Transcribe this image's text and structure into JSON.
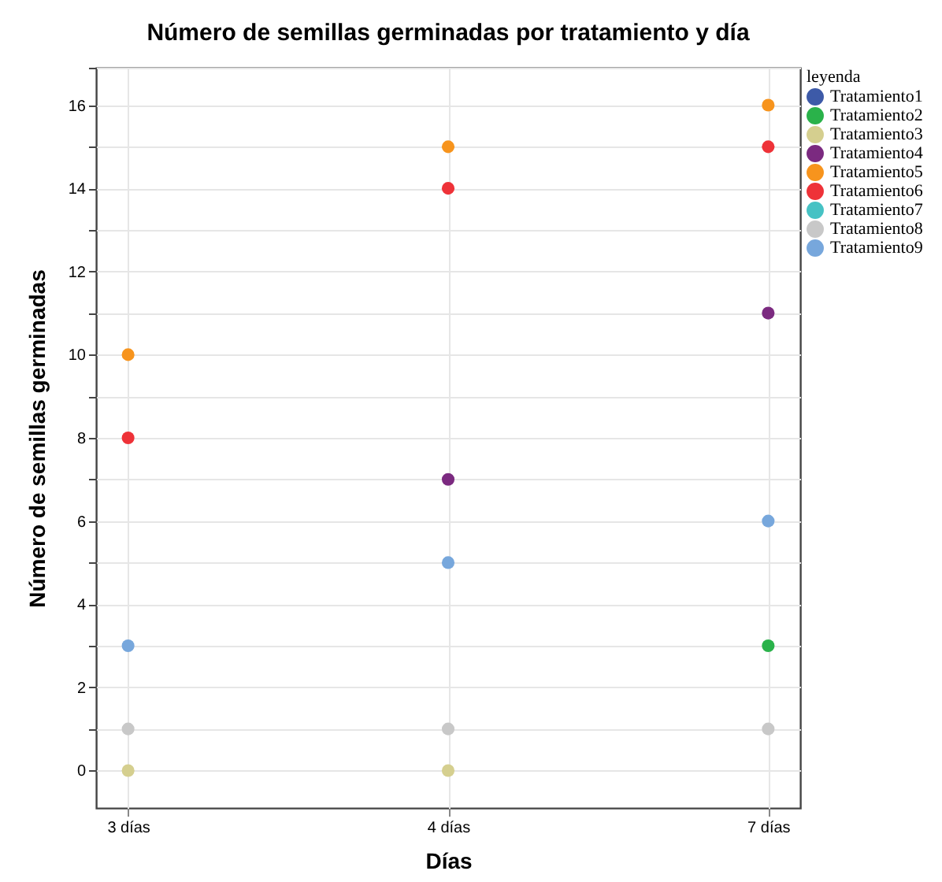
{
  "chart_data": {
    "type": "scatter",
    "title": "Número de semillas germinadas por tratamiento y día",
    "xlabel": "Días",
    "ylabel": "Número de semillas germinadas",
    "legend_title": "leyenda",
    "categories": [
      "3 días",
      "4 días",
      "7 días"
    ],
    "series": [
      {
        "name": "Tratamiento1",
        "color": "#3d5aa8",
        "values": [
          null,
          null,
          null
        ]
      },
      {
        "name": "Tratamiento2",
        "color": "#2ab24a",
        "values": [
          null,
          null,
          3
        ]
      },
      {
        "name": "Tratamiento3",
        "color": "#d5cf8f",
        "values": [
          0,
          0,
          null
        ]
      },
      {
        "name": "Tratamiento4",
        "color": "#7b2a80",
        "values": [
          null,
          7,
          11
        ]
      },
      {
        "name": "Tratamiento5",
        "color": "#f7941d",
        "values": [
          10,
          15,
          16
        ]
      },
      {
        "name": "Tratamiento6",
        "color": "#ee3238",
        "values": [
          8,
          14,
          15
        ]
      },
      {
        "name": "Tratamiento7",
        "color": "#46c2c4",
        "values": [
          null,
          null,
          null
        ]
      },
      {
        "name": "Tratamiento8",
        "color": "#c8c8c8",
        "values": [
          1,
          1,
          1
        ]
      },
      {
        "name": "Tratamiento9",
        "color": "#77a7dc",
        "values": [
          3,
          5,
          6
        ]
      }
    ],
    "ylim": [
      -0.9,
      16.9
    ],
    "yticks": [
      0,
      {
        "value": 1,
        "label": null
      },
      2,
      {
        "value": 3,
        "label": null
      },
      4,
      {
        "value": 5,
        "label": null
      },
      6,
      {
        "value": 7,
        "label": null
      },
      8,
      {
        "value": 9,
        "label": null
      },
      10,
      {
        "value": 11,
        "label": null
      },
      12,
      {
        "value": 13,
        "label": null
      },
      14,
      {
        "value": 15,
        "label": null
      },
      16,
      {
        "value": 16.9,
        "label": null
      }
    ],
    "grid": true,
    "legend": "top right",
    "marker": "circle"
  }
}
